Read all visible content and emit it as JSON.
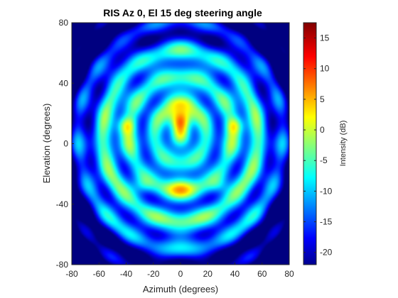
{
  "chart_data": {
    "type": "heatmap",
    "title": "RIS Az 0, El 15 deg steering angle",
    "xlabel": "Azimuth (degrees)",
    "ylabel": "Elevation (degrees)",
    "xlim": [
      -80,
      80
    ],
    "ylim": [
      -80,
      80
    ],
    "xticks": [
      -80,
      -60,
      -40,
      -20,
      0,
      20,
      40,
      60,
      80
    ],
    "yticks": [
      -80,
      -40,
      0,
      40,
      80
    ],
    "colormap": "jet",
    "colorbar": {
      "label": "Intensity (dB)",
      "range": [
        -22,
        17.5
      ],
      "ticks": [
        15,
        10,
        5,
        0,
        -5,
        -10,
        -15,
        -20
      ]
    },
    "peak": {
      "azimuth": 0,
      "elevation": 15,
      "value": 17
    },
    "features": [
      {
        "description": "main lobe",
        "azimuth": 0,
        "elevation": 15,
        "value": 17
      },
      {
        "description": "upper lobe",
        "azimuth": 0,
        "elevation": 31,
        "value": 10
      },
      {
        "description": "side lobe left",
        "azimuth": -40,
        "elevation": 12,
        "value": 2
      },
      {
        "description": "side lobe right",
        "azimuth": 40,
        "elevation": 12,
        "value": 2
      },
      {
        "description": "lower lobe",
        "azimuth": 0,
        "elevation": -28,
        "value": -1
      }
    ]
  }
}
